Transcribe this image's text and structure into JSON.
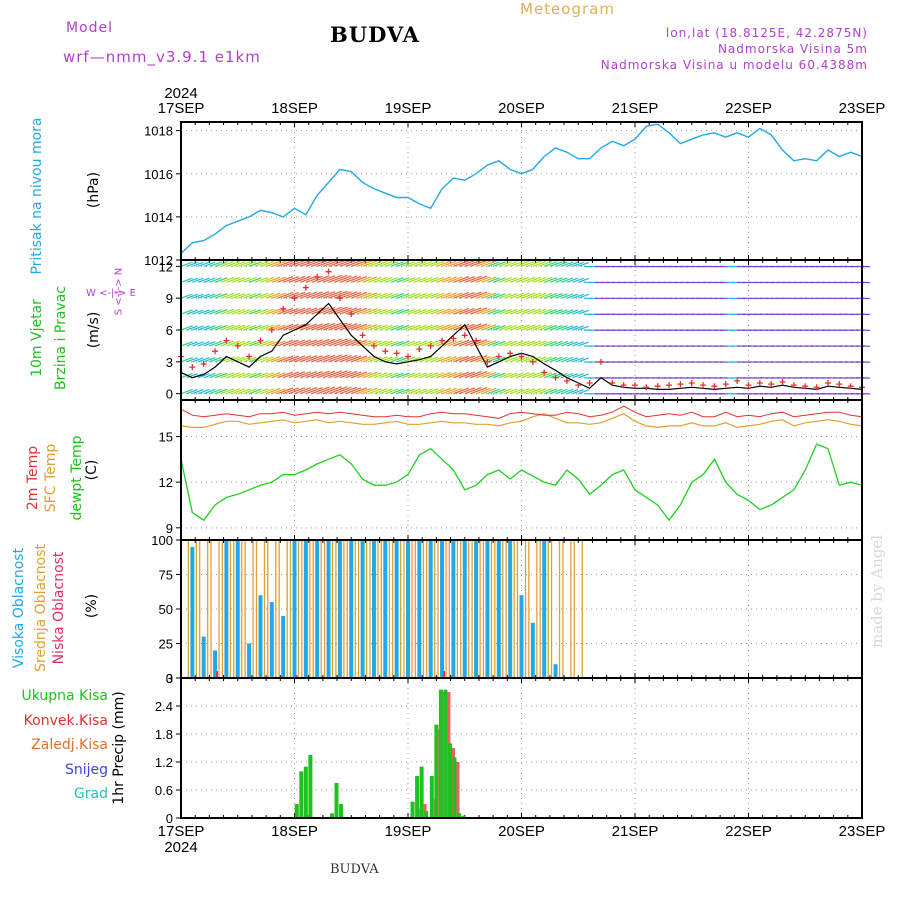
{
  "header": {
    "model_label": "Model",
    "model_name": "wrf—nmm_v3.9.1  e1km",
    "title": "BUDVA",
    "meteogram": "Meteogram",
    "lonlat": "lon,lat (18.8125E, 42.2875N)",
    "altitude": "Nadmorska Visina 5m",
    "model_altitude": "Nadmorska Visina u modelu 60.4388m"
  },
  "footer": {
    "station": "BUDVA",
    "watermark": "made by Angel"
  },
  "time_axis": {
    "year": "2024",
    "labels": [
      "17SEP",
      "18SEP",
      "19SEP",
      "20SEP",
      "21SEP",
      "22SEP",
      "23SEP"
    ]
  },
  "panel_labels": {
    "pressure": [
      "Pritisak na nivou mora",
      "(hPa)"
    ],
    "wind": [
      "10m Vjetar",
      "Brzina i Pravac",
      "(m/s)"
    ],
    "compass": "W <-|-> E",
    "compass_ns": "S <-|-> N",
    "temp": [
      "2m Temp",
      "SFC Temp",
      "dewpt Temp",
      "(C)"
    ],
    "cloud": [
      "Visoka Oblacnost",
      "Srednja Oblacnost",
      "Niska Oblacnost",
      "(%)"
    ],
    "precip_unit": "1hr Precip (mm)",
    "precip_legend": [
      "Ukupna Kisa",
      "Konvek.Kisa",
      "Zaledj.Kisa",
      "Snijeg",
      "Grad"
    ]
  },
  "colors": {
    "pressure": "#20a8e8",
    "temp_2m": "#e83030",
    "temp_sfc": "#e0a030",
    "dewpt": "#20d020",
    "cloud_high": "#20a8e8",
    "cloud_mid": "#e0a030",
    "cloud_low": "#e03060",
    "rain_total": "#20c020",
    "rain_conv": "#e03030",
    "rain_frz": "#e07030",
    "snow": "#4040e0",
    "hail": "#20c0c0",
    "wind_speed": "#000000",
    "wind_gust": "#e83030"
  },
  "chart_data": [
    {
      "type": "line",
      "name": "pressure",
      "ylabel": "(hPa)",
      "ylim": [
        1012,
        1018.4
      ],
      "yticks": [
        1012,
        1014,
        1016,
        1018
      ],
      "x_days": [
        0,
        0.1,
        0.2,
        0.3,
        0.4,
        0.5,
        0.6,
        0.7,
        0.8,
        0.9,
        1.0,
        1.1,
        1.2,
        1.3,
        1.4,
        1.5,
        1.6,
        1.7,
        1.8,
        1.9,
        2.0,
        2.1,
        2.2,
        2.3,
        2.4,
        2.5,
        2.6,
        2.7,
        2.8,
        2.9,
        3.0,
        3.1,
        3.2,
        3.3,
        3.4,
        3.5,
        3.6,
        3.7,
        3.8,
        3.9,
        4.0,
        4.1,
        4.2,
        4.3,
        4.4,
        4.5,
        4.6,
        4.7,
        4.8,
        4.9,
        5.0,
        5.1,
        5.2,
        5.3,
        5.4,
        5.5,
        5.6,
        5.7,
        5.8,
        5.9,
        6.0
      ],
      "values": [
        1012.3,
        1012.8,
        1012.9,
        1013.2,
        1013.6,
        1013.8,
        1014.0,
        1014.3,
        1014.2,
        1014.0,
        1014.4,
        1014.1,
        1015.0,
        1015.6,
        1016.2,
        1016.1,
        1015.6,
        1015.3,
        1015.1,
        1014.9,
        1014.9,
        1014.6,
        1014.4,
        1015.3,
        1015.8,
        1015.7,
        1016.0,
        1016.4,
        1016.6,
        1016.2,
        1016.0,
        1016.2,
        1016.8,
        1017.2,
        1017.0,
        1016.7,
        1016.7,
        1017.2,
        1017.5,
        1017.3,
        1017.6,
        1018.2,
        1018.3,
        1017.9,
        1017.4,
        1017.6,
        1017.8,
        1017.9,
        1017.7,
        1017.9,
        1017.7,
        1018.1,
        1017.8,
        1017.1,
        1016.6,
        1016.7,
        1016.6,
        1017.1,
        1016.8,
        1017.0,
        1016.8
      ]
    },
    {
      "type": "line",
      "name": "wind",
      "ylabel": "(m/s)",
      "ylim": [
        -0.6,
        12.6
      ],
      "yticks": [
        0,
        3,
        6,
        9,
        12
      ],
      "x_days": [
        0,
        0.1,
        0.2,
        0.3,
        0.4,
        0.5,
        0.6,
        0.7,
        0.8,
        0.9,
        1.0,
        1.1,
        1.2,
        1.3,
        1.4,
        1.5,
        1.6,
        1.7,
        1.8,
        1.9,
        2.0,
        2.1,
        2.2,
        2.3,
        2.4,
        2.5,
        2.6,
        2.7,
        2.8,
        2.9,
        3.0,
        3.1,
        3.2,
        3.3,
        3.4,
        3.5,
        3.6,
        3.7,
        3.8,
        3.9,
        4.0,
        4.1,
        4.2,
        4.3,
        4.4,
        4.5,
        4.6,
        4.7,
        4.8,
        4.9,
        5.0,
        5.1,
        5.2,
        5.3,
        5.4,
        5.5,
        5.6,
        5.7,
        5.8,
        5.9,
        6.0
      ],
      "series": [
        {
          "name": "speed",
          "values": [
            2.0,
            1.5,
            1.8,
            2.5,
            3.5,
            3.0,
            2.5,
            3.5,
            4.0,
            5.5,
            6.0,
            6.5,
            7.5,
            8.5,
            7.0,
            5.5,
            4.5,
            3.5,
            3.0,
            2.8,
            3.0,
            3.2,
            3.5,
            4.5,
            5.5,
            6.5,
            4.5,
            2.5,
            3.0,
            3.5,
            3.8,
            3.5,
            2.8,
            2.2,
            1.5,
            1.0,
            0.5,
            1.5,
            0.8,
            0.6,
            0.5,
            0.5,
            0.4,
            0.4,
            0.5,
            0.6,
            0.5,
            0.4,
            0.5,
            0.6,
            0.5,
            0.7,
            0.6,
            0.8,
            0.6,
            0.5,
            0.4,
            0.7,
            0.6,
            0.5,
            0.4
          ]
        },
        {
          "name": "gust",
          "values": [
            3.5,
            2.5,
            2.8,
            4.0,
            5.0,
            4.5,
            3.5,
            5.0,
            6.0,
            8.0,
            9.0,
            10.0,
            11.0,
            11.5,
            9.0,
            7.5,
            5.5,
            4.5,
            4.0,
            3.8,
            3.5,
            4.2,
            4.5,
            5.0,
            5.2,
            5.5,
            5.0,
            3.0,
            3.5,
            3.8,
            3.5,
            3.0,
            2.0,
            1.5,
            1.2,
            0.8,
            1.0,
            3.0,
            1.0,
            0.8,
            0.8,
            0.6,
            0.7,
            0.8,
            0.9,
            1.0,
            0.8,
            0.7,
            0.9,
            1.2,
            0.8,
            1.0,
            0.9,
            1.1,
            0.8,
            0.7,
            0.6,
            1.0,
            0.9,
            0.7,
            0.6
          ]
        }
      ]
    },
    {
      "type": "line",
      "name": "temperature",
      "ylabel": "(C)",
      "ylim": [
        8.2,
        17.4
      ],
      "yticks": [
        9,
        12,
        15
      ],
      "x_days": [
        0,
        0.1,
        0.2,
        0.3,
        0.4,
        0.5,
        0.6,
        0.7,
        0.8,
        0.9,
        1.0,
        1.1,
        1.2,
        1.3,
        1.4,
        1.5,
        1.6,
        1.7,
        1.8,
        1.9,
        2.0,
        2.1,
        2.2,
        2.3,
        2.4,
        2.5,
        2.6,
        2.7,
        2.8,
        2.9,
        3.0,
        3.1,
        3.2,
        3.3,
        3.4,
        3.5,
        3.6,
        3.7,
        3.8,
        3.9,
        4.0,
        4.1,
        4.2,
        4.3,
        4.4,
        4.5,
        4.6,
        4.7,
        4.8,
        4.9,
        5.0,
        5.1,
        5.2,
        5.3,
        5.4,
        5.5,
        5.6,
        5.7,
        5.8,
        5.9,
        6.0
      ],
      "series": [
        {
          "name": "2m Temp",
          "values": [
            16.8,
            16.4,
            16.3,
            16.4,
            16.5,
            16.4,
            16.3,
            16.5,
            16.5,
            16.6,
            16.4,
            16.5,
            16.6,
            16.5,
            16.6,
            16.5,
            16.4,
            16.3,
            16.3,
            16.4,
            16.3,
            16.3,
            16.5,
            16.6,
            16.5,
            16.5,
            16.4,
            16.3,
            16.2,
            16.5,
            16.6,
            16.5,
            16.4,
            16.4,
            16.6,
            16.5,
            16.3,
            16.4,
            16.6,
            17.0,
            16.6,
            16.3,
            16.4,
            16.5,
            16.4,
            16.6,
            16.3,
            16.3,
            16.6,
            16.3,
            16.4,
            16.3,
            16.5,
            16.6,
            16.3,
            16.4,
            16.5,
            16.6,
            16.6,
            16.4,
            16.3
          ]
        },
        {
          "name": "SFC Temp",
          "values": [
            15.7,
            15.6,
            15.6,
            15.8,
            16.0,
            16.0,
            15.8,
            15.9,
            16.0,
            16.1,
            15.9,
            16.0,
            16.1,
            15.9,
            16.0,
            15.9,
            15.8,
            15.8,
            15.9,
            16.0,
            15.8,
            15.8,
            15.9,
            16.0,
            15.9,
            15.9,
            15.8,
            15.8,
            15.7,
            15.9,
            16.0,
            16.3,
            16.5,
            16.2,
            15.9,
            15.9,
            15.8,
            15.9,
            16.2,
            16.5,
            16.0,
            15.7,
            15.6,
            15.7,
            15.7,
            15.9,
            15.7,
            15.7,
            15.9,
            15.6,
            15.7,
            15.8,
            16.0,
            16.1,
            15.7,
            15.9,
            16.0,
            16.1,
            16.0,
            15.8,
            15.7
          ]
        },
        {
          "name": "dewpt Temp",
          "values": [
            13.5,
            10.0,
            9.5,
            10.5,
            11.0,
            11.2,
            11.5,
            11.8,
            12.0,
            12.5,
            12.5,
            12.8,
            13.2,
            13.5,
            13.8,
            13.2,
            12.2,
            11.8,
            11.8,
            12.0,
            12.5,
            13.8,
            14.2,
            13.5,
            12.8,
            11.5,
            11.8,
            12.5,
            12.8,
            12.2,
            12.8,
            12.4,
            12.0,
            11.8,
            12.8,
            12.2,
            11.2,
            11.8,
            12.5,
            12.8,
            11.5,
            11.0,
            10.5,
            9.5,
            10.5,
            12.0,
            12.5,
            13.5,
            12.0,
            11.2,
            10.8,
            10.2,
            10.5,
            11.0,
            11.5,
            12.8,
            14.5,
            14.2,
            11.8,
            12.0,
            11.8
          ]
        }
      ]
    },
    {
      "type": "bar",
      "name": "cloud cover",
      "ylabel": "(%)",
      "ylim": [
        0,
        100
      ],
      "yticks": [
        0,
        25,
        50,
        75,
        100
      ],
      "x_days": [
        0.1,
        0.2,
        0.3,
        0.4,
        0.5,
        0.6,
        0.7,
        0.8,
        0.9,
        1.0,
        1.1,
        1.2,
        1.3,
        1.4,
        1.5,
        1.6,
        1.7,
        1.8,
        1.9,
        2.0,
        2.1,
        2.2,
        2.3,
        2.4,
        2.5,
        2.6,
        2.7,
        2.8,
        2.9,
        3.0,
        3.1,
        3.2,
        3.3,
        3.4,
        3.5
      ],
      "series": [
        {
          "name": "Visoka Oblacnost",
          "values": [
            95,
            30,
            20,
            100,
            100,
            25,
            60,
            55,
            45,
            100,
            100,
            100,
            100,
            100,
            100,
            100,
            100,
            100,
            100,
            100,
            100,
            100,
            100,
            100,
            100,
            100,
            100,
            100,
            100,
            60,
            40,
            100,
            10,
            0,
            0
          ]
        },
        {
          "name": "Srednja Oblacnost",
          "values": [
            100,
            100,
            100,
            100,
            100,
            100,
            100,
            100,
            100,
            100,
            100,
            100,
            100,
            100,
            100,
            100,
            100,
            100,
            100,
            100,
            100,
            100,
            100,
            100,
            100,
            100,
            100,
            100,
            100,
            100,
            100,
            100,
            100,
            100,
            100
          ]
        },
        {
          "name": "Niska Oblacnost",
          "values": [
            0,
            0,
            5,
            0,
            0,
            0,
            0,
            0,
            0,
            2,
            0,
            0,
            0,
            0,
            0,
            0,
            0,
            0,
            0,
            0,
            0,
            0,
            5,
            0,
            0,
            0,
            0,
            0,
            0,
            0,
            0,
            0,
            0,
            0,
            0
          ]
        }
      ]
    },
    {
      "type": "bar",
      "name": "precipitation",
      "ylabel": "1hr Precip (mm)",
      "ylim": [
        0,
        3
      ],
      "yticks": [
        0,
        0.6,
        1.2,
        1.8,
        2.4,
        3
      ],
      "x_days": [
        1.02,
        1.06,
        1.1,
        1.14,
        1.33,
        1.37,
        1.41,
        2.04,
        2.08,
        2.12,
        2.16,
        2.21,
        2.25,
        2.29,
        2.33,
        2.37,
        2.41,
        2.45,
        2.49
      ],
      "series": [
        {
          "name": "Ukupna Kisa",
          "values": [
            0.3,
            1.0,
            1.1,
            1.35,
            0.1,
            0.75,
            0.3,
            0.35,
            0.9,
            1.1,
            0.15,
            0.9,
            2.0,
            2.75,
            2.75,
            1.6,
            1.3,
            0.1,
            0.05
          ]
        },
        {
          "name": "Konvek.Kisa",
          "values": [
            0,
            0,
            0,
            0,
            0,
            0,
            0,
            0,
            0.2,
            0.3,
            0,
            0.4,
            1.9,
            2.7,
            2.7,
            1.5,
            1.2,
            0,
            0
          ]
        },
        {
          "name": "Zaledj.Kisa",
          "values": [
            0,
            0,
            0,
            0,
            0,
            0,
            0,
            0,
            0,
            0,
            0,
            0,
            0,
            0,
            0,
            0,
            0,
            0,
            0
          ]
        },
        {
          "name": "Snijeg",
          "values": [
            0,
            0,
            0,
            0,
            0,
            0,
            0,
            0,
            0,
            0,
            0,
            0,
            0,
            0,
            0,
            0,
            0,
            0,
            0
          ]
        },
        {
          "name": "Grad",
          "values": [
            0,
            0,
            0,
            0,
            0,
            0,
            0,
            0,
            0,
            0,
            0,
            0,
            0,
            0,
            0,
            0,
            0,
            0,
            0
          ]
        }
      ]
    }
  ]
}
